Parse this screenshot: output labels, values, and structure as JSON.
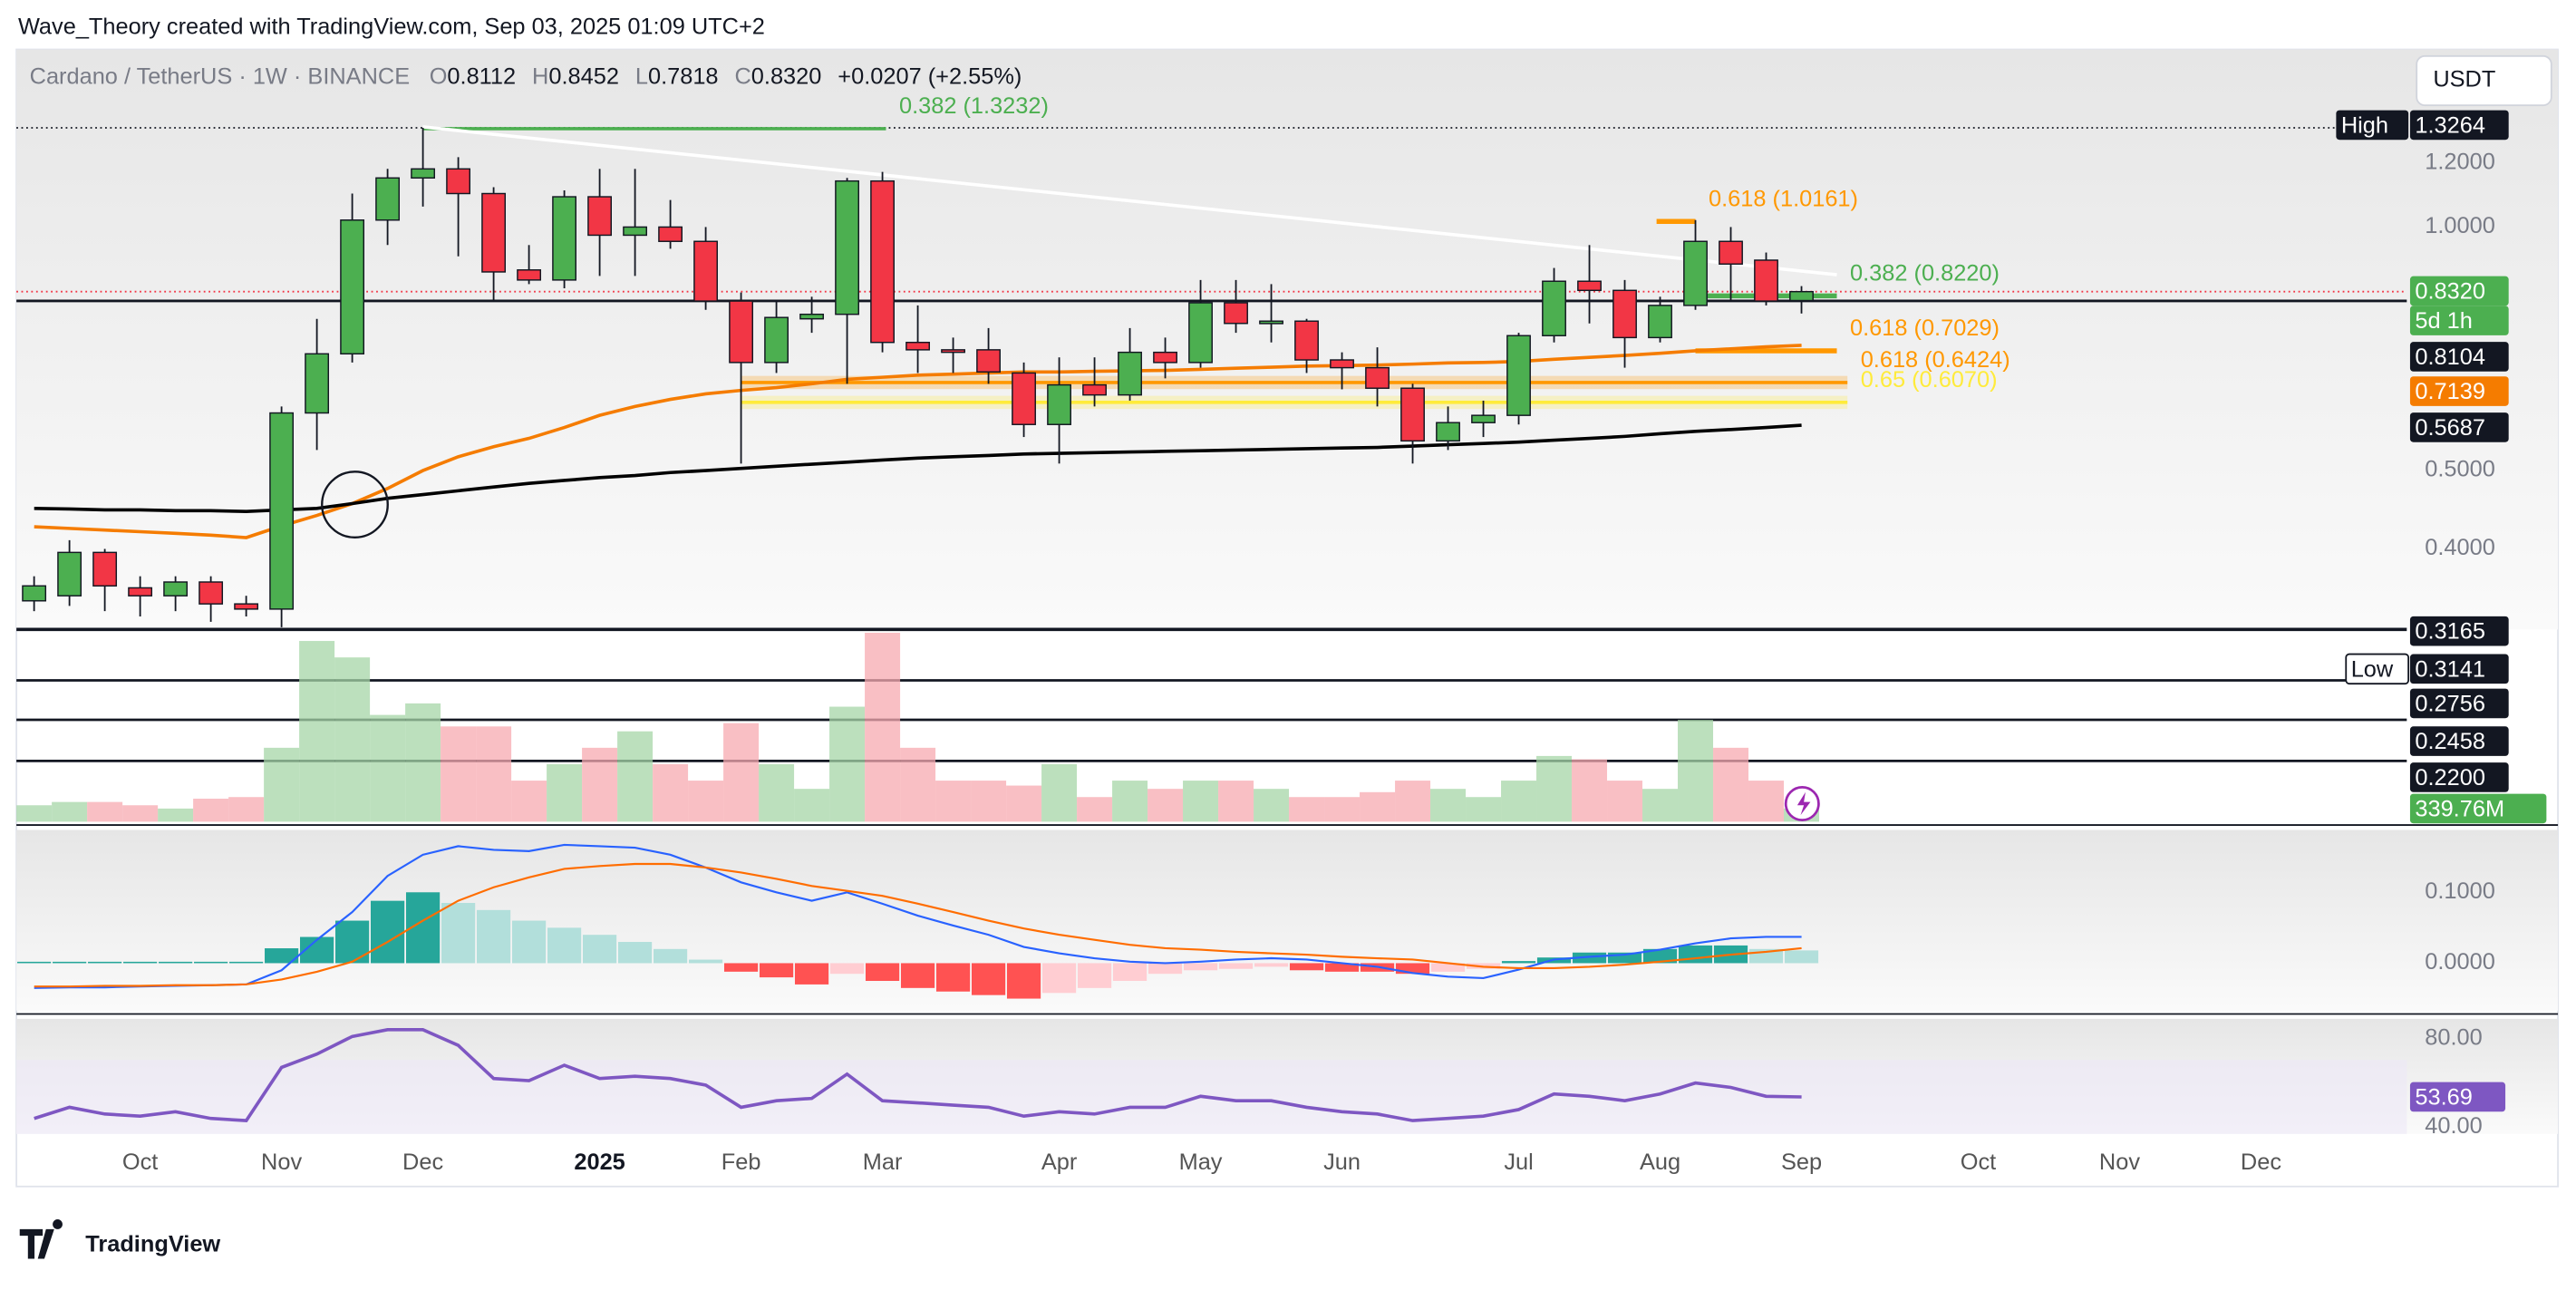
{
  "header": "Wave_Theory created with TradingView.com, Sep 03, 2025 01:09 UTC+2",
  "watermark": "TradingView",
  "currency": "USDT",
  "chart_data": [
    {
      "type": "candlestick",
      "title": "Cardano / TetherUS · 1W · BINANCE",
      "legend_ohlc": [
        "O",
        "0.8112",
        "H",
        "0.8452",
        "L",
        "0.7818",
        "C",
        "0.8320",
        "+0.0207 (+2.55%)"
      ],
      "xlim": [
        -0.5,
        71.4
      ],
      "xticks": [
        {
          "value": 3,
          "label": "Oct"
        },
        {
          "value": 7,
          "label": "Nov"
        },
        {
          "value": 11,
          "label": "Dec"
        },
        {
          "value": 16,
          "label": "2025"
        },
        {
          "value": 20,
          "label": "Feb"
        },
        {
          "value": 24,
          "label": "Mar"
        },
        {
          "value": 29,
          "label": "Apr"
        },
        {
          "value": 33,
          "label": "May"
        },
        {
          "value": 37,
          "label": "Jun"
        },
        {
          "value": 42,
          "label": "Jul"
        },
        {
          "value": 46,
          "label": "Aug"
        },
        {
          "value": 50,
          "label": "Sep"
        },
        {
          "value": 55,
          "label": "Oct"
        },
        {
          "value": 59,
          "label": "Nov"
        },
        {
          "value": 63,
          "label": "Dec"
        }
      ],
      "ylim": [
        0.318,
        1.658
      ],
      "log_scale": true,
      "yticks": [
        {
          "value": 1.2,
          "label": "1.2000"
        },
        {
          "value": 1,
          "label": "1.0000"
        },
        {
          "value": 0.5,
          "label": "0.5000"
        },
        {
          "value": 0.4,
          "label": "0.4000"
        }
      ],
      "up_color": "#4caf50",
      "down_color": "#f23645",
      "open": [
        0.345,
        0.35,
        0.396,
        0.358,
        0.35,
        0.364,
        0.342,
        0.337,
        0.589,
        0.697,
        1.02,
        1.15,
        1.18,
        1.1,
        0.885,
        0.86,
        1.09,
        0.977,
        1.0,
        0.96,
        0.81,
        0.68,
        0.77,
        0.78,
        1.14,
        0.72,
        0.705,
        0.705,
        0.66,
        0.57,
        0.638,
        0.62,
        0.7,
        0.68,
        0.806,
        0.76,
        0.765,
        0.685,
        0.67,
        0.632,
        0.544,
        0.573,
        0.585,
        0.734,
        0.857,
        0.835,
        0.73,
        0.8,
        0.96,
        0.91,
        0.8112
      ],
      "high": [
        0.37,
        0.41,
        0.4,
        0.37,
        0.37,
        0.37,
        0.35,
        0.6,
        0.77,
        1.1,
        1.18,
        1.3264,
        1.22,
        1.12,
        0.95,
        1.11,
        1.18,
        1.18,
        1.08,
        1.0,
        0.83,
        0.81,
        0.82,
        1.15,
        1.17,
        0.8,
        0.73,
        0.75,
        0.68,
        0.69,
        0.69,
        0.75,
        0.73,
        0.86,
        0.86,
        0.85,
        0.77,
        0.7,
        0.71,
        0.64,
        0.6,
        0.61,
        0.74,
        0.89,
        0.95,
        0.86,
        0.82,
        1.02,
        1.0,
        0.93,
        0.8452
      ],
      "low": [
        0.335,
        0.34,
        0.335,
        0.33,
        0.335,
        0.325,
        0.33,
        0.32,
        0.53,
        0.68,
        0.95,
        1.06,
        0.92,
        0.81,
        0.85,
        0.84,
        0.87,
        0.87,
        0.94,
        0.79,
        0.51,
        0.66,
        0.74,
        0.64,
        0.7,
        0.66,
        0.66,
        0.64,
        0.55,
        0.51,
        0.6,
        0.61,
        0.65,
        0.67,
        0.74,
        0.72,
        0.66,
        0.63,
        0.6,
        0.51,
        0.53,
        0.55,
        0.57,
        0.72,
        0.76,
        0.67,
        0.72,
        0.79,
        0.81,
        0.8,
        0.7818
      ],
      "close": [
        0.36,
        0.396,
        0.36,
        0.35,
        0.364,
        0.342,
        0.337,
        0.589,
        0.697,
        1.02,
        1.15,
        1.18,
        1.1,
        0.88,
        0.86,
        1.09,
        0.977,
        1.0,
        0.96,
        0.81,
        0.68,
        0.773,
        0.78,
        1.14,
        0.72,
        0.705,
        0.7,
        0.662,
        0.57,
        0.638,
        0.62,
        0.7,
        0.68,
        0.806,
        0.76,
        0.765,
        0.685,
        0.67,
        0.632,
        0.544,
        0.573,
        0.585,
        0.734,
        0.857,
        0.835,
        0.73,
        0.8,
        0.96,
        0.9,
        0.81,
        0.832
      ],
      "moving_averages": [
        {
          "color": "#f57c00",
          "values": [
            0.426,
            0.424,
            0.422,
            0.42,
            0.418,
            0.416,
            0.413,
            0.427,
            0.44,
            0.455,
            0.475,
            0.5,
            0.52,
            0.535,
            0.548,
            0.565,
            0.585,
            0.6,
            0.612,
            0.622,
            0.628,
            0.633,
            0.64,
            0.648,
            0.652,
            0.656,
            0.658,
            0.66,
            0.662,
            0.662,
            0.663,
            0.664,
            0.665,
            0.667,
            0.669,
            0.671,
            0.673,
            0.674,
            0.675,
            0.677,
            0.679,
            0.68,
            0.682,
            0.686,
            0.69,
            0.694,
            0.698,
            0.703,
            0.707,
            0.711,
            0.7139
          ]
        },
        {
          "color": "#000000",
          "values": [
            0.449,
            0.448,
            0.447,
            0.447,
            0.446,
            0.446,
            0.445,
            0.447,
            0.449,
            0.455,
            0.462,
            0.467,
            0.472,
            0.477,
            0.482,
            0.486,
            0.49,
            0.493,
            0.497,
            0.5,
            0.503,
            0.506,
            0.509,
            0.512,
            0.515,
            0.518,
            0.52,
            0.522,
            0.524,
            0.525,
            0.526,
            0.527,
            0.528,
            0.529,
            0.53,
            0.531,
            0.532,
            0.533,
            0.534,
            0.536,
            0.538,
            0.54,
            0.542,
            0.545,
            0.548,
            0.551,
            0.555,
            0.559,
            0.562,
            0.565,
            0.5687
          ]
        }
      ],
      "trendline": {
        "x": [
          11,
          51
        ],
        "values": [
          1.33,
          0.873
        ],
        "color": "#ffffff"
      },
      "levels": [
        {
          "label": "0.382 (1.3232)",
          "value": 1.3232,
          "color": "#4caf50",
          "x": [
            11,
            24.1
          ]
        },
        {
          "label": "0.618 (1.0161)",
          "value": 1.0161,
          "color": "#ff9800",
          "x": [
            45.9,
            47
          ]
        },
        {
          "label": "0.382 (0.8220)",
          "value": 0.822,
          "color": "#4caf50",
          "x": [
            47.3,
            51
          ]
        },
        {
          "label": "0.618 (0.7029)",
          "value": 0.7029,
          "color": "#ff9800",
          "x": [
            47,
            51
          ]
        },
        {
          "label": "0.618 (0.6424)",
          "value": 0.6424,
          "color": "#ff9800",
          "x": [
            20,
            51.3
          ]
        },
        {
          "label": "0.65 (0.6070)",
          "value": 0.607,
          "color": "#ffeb3b",
          "x": [
            20,
            51.3
          ]
        }
      ],
      "support_line": {
        "value": 0.8104
      },
      "price_labels": [
        "High",
        {
          "value": 1.3264,
          "label": "1.3264"
        },
        {
          "value": 0.832,
          "label": "0.8320"
        },
        "5d 1h",
        {
          "value": 0.8104,
          "label": "0.8104"
        },
        {
          "value": 0.7139,
          "label": "0.7139"
        },
        {
          "value": 0.5687,
          "label": "0.5687"
        },
        {
          "value": 0.3165,
          "label": "0.3165"
        },
        "Low",
        {
          "value": 0.3141,
          "label": "0.3141"
        },
        {
          "value": 0.2756,
          "label": "0.2756"
        },
        {
          "value": 0.2458,
          "label": "0.2458"
        },
        {
          "value": 0.22,
          "label": "0.2200"
        }
      ]
    },
    {
      "type": "volume",
      "up_color": "#a5d6a7",
      "down_color": "#f7a9b0",
      "ylim": [
        0,
        4927
      ],
      "values": [
        425,
        510,
        510,
        425,
        340,
        595,
        637,
        1911,
        4672,
        4247,
        2761,
        3058,
        2463,
        2463,
        1062,
        1486,
        1911,
        2336,
        1486,
        1062,
        2548,
        1486,
        849,
        2973,
        4884,
        1911,
        1062,
        1062,
        934,
        1486,
        637,
        1062,
        849,
        1062,
        1062,
        849,
        637,
        637,
        764,
        1062,
        849,
        637,
        1062,
        1699,
        1614,
        1062,
        849,
        2633,
        1911,
        1062,
        339.76
      ],
      "value_labels": [
        null,
        null,
        null,
        null,
        null,
        null,
        null,
        null,
        null,
        null,
        null,
        null,
        null,
        null,
        null,
        null,
        null,
        null,
        null,
        null,
        null,
        null,
        null,
        null,
        null,
        null,
        null,
        null,
        null,
        null,
        null,
        null,
        null,
        null,
        null,
        null,
        null,
        null,
        null,
        null,
        null,
        null,
        null,
        null,
        null,
        null,
        null,
        null,
        null,
        null,
        "339.76M"
      ]
    },
    {
      "type": "macd",
      "macd_color": "#2962ff",
      "signal_color": "#ff6d00",
      "ylim": [
        -0.067,
        0.188
      ],
      "yticks": [
        {
          "value": 0.1,
          "label": "0.1000"
        },
        {
          "value": 0,
          "label": "0.0000"
        }
      ],
      "histogram": [
        0.002,
        0.002,
        0.002,
        0.002,
        0.002,
        0.002,
        0.002,
        0.021,
        0.037,
        0.06,
        0.088,
        0.1,
        0.085,
        0.075,
        0.06,
        0.05,
        0.04,
        0.03,
        0.02,
        0.005,
        -0.012,
        -0.02,
        -0.03,
        -0.015,
        -0.025,
        -0.035,
        -0.04,
        -0.045,
        -0.05,
        -0.042,
        -0.035,
        -0.025,
        -0.015,
        -0.01,
        -0.008,
        -0.005,
        -0.01,
        -0.012,
        -0.012,
        -0.015,
        -0.012,
        -0.008,
        0.003,
        0.008,
        0.015,
        0.015,
        0.02,
        0.025,
        0.025,
        0.02,
        0.018
      ],
      "macd": [
        -0.035,
        -0.034,
        -0.034,
        -0.033,
        -0.032,
        -0.031,
        -0.03,
        -0.01,
        0.033,
        0.072,
        0.123,
        0.153,
        0.165,
        0.16,
        0.158,
        0.167,
        0.165,
        0.163,
        0.153,
        0.135,
        0.114,
        0.1,
        0.088,
        0.1,
        0.084,
        0.067,
        0.053,
        0.04,
        0.023,
        0.014,
        0.007,
        0.002,
        0,
        0.002,
        0.005,
        0.007,
        0.005,
        0,
        -0.005,
        -0.014,
        -0.019,
        -0.021,
        -0.009,
        0.005,
        0.009,
        0.012,
        0.019,
        0.028,
        0.035,
        0.037,
        0.037
      ],
      "signal": [
        -0.033,
        -0.033,
        -0.032,
        -0.032,
        -0.031,
        -0.031,
        -0.03,
        -0.023,
        -0.012,
        0.002,
        0.03,
        0.06,
        0.088,
        0.107,
        0.121,
        0.133,
        0.137,
        0.14,
        0.14,
        0.135,
        0.128,
        0.119,
        0.109,
        0.102,
        0.095,
        0.084,
        0.072,
        0.06,
        0.049,
        0.04,
        0.033,
        0.026,
        0.021,
        0.019,
        0.016,
        0.014,
        0.012,
        0.009,
        0.007,
        0.005,
        0,
        -0.005,
        -0.007,
        -0.007,
        -0.005,
        -0.002,
        0.002,
        0.007,
        0.012,
        0.016,
        0.021
      ]
    },
    {
      "type": "line",
      "color": "#7e57c2",
      "ylim": [
        37,
        88.9
      ],
      "yticks": [
        {
          "value": 80,
          "label": "80.00"
        },
        {
          "value": 40,
          "label": "40.00"
        }
      ],
      "values": [
        44,
        49,
        46,
        45,
        47,
        44,
        43,
        67,
        73,
        81,
        84,
        84,
        77,
        62,
        61,
        68,
        62,
        63,
        62,
        59,
        49,
        52,
        53,
        64,
        52,
        51,
        50,
        49,
        45,
        47,
        46,
        49,
        49,
        54,
        52,
        52,
        49,
        47,
        46,
        43,
        44,
        45,
        48,
        55,
        54,
        52,
        55,
        60,
        58,
        54,
        53.69
      ],
      "value_labels": [
        null,
        null,
        null,
        null,
        null,
        null,
        null,
        null,
        null,
        null,
        null,
        null,
        null,
        null,
        null,
        null,
        null,
        null,
        null,
        null,
        null,
        null,
        null,
        null,
        null,
        null,
        null,
        null,
        null,
        null,
        null,
        null,
        null,
        null,
        null,
        null,
        null,
        null,
        null,
        null,
        null,
        null,
        null,
        null,
        null,
        null,
        null,
        null,
        null,
        null,
        "53.69"
      ]
    }
  ]
}
